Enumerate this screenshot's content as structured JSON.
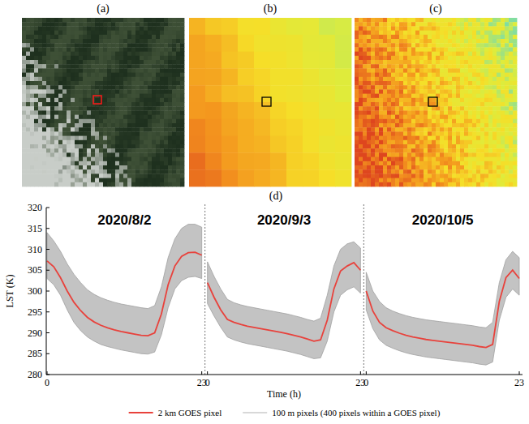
{
  "figure": {
    "panel_labels": [
      "(a)",
      "(b)",
      "(c)",
      "(d)"
    ]
  },
  "chart_data": [
    {
      "type": "line",
      "title": "2020/8/2",
      "y_label": "LST (K)",
      "legend": "bottom",
      "x": [
        0,
        1,
        2,
        3,
        4,
        5,
        6,
        7,
        8,
        9,
        10,
        11,
        12,
        13,
        14,
        15,
        16,
        17,
        18,
        19,
        20,
        21,
        22,
        23
      ],
      "xlim": [
        0,
        23
      ],
      "xticks": [
        0,
        23
      ],
      "ylim": [
        280,
        320
      ],
      "yticks": [
        280,
        285,
        290,
        295,
        300,
        305,
        310,
        315,
        320
      ],
      "series": [
        {
          "name": "2 km GOES pixel",
          "color": "#e8423c",
          "values": [
            307.2,
            305.8,
            303.2,
            300,
            297.3,
            295.3,
            293.7,
            292.6,
            291.8,
            291.2,
            290.7,
            290.3,
            290,
            289.7,
            289.4,
            289.3,
            290,
            294.5,
            301.5,
            306,
            308.3,
            309.2,
            309.3,
            308.6
          ]
        },
        {
          "name": "100 m pixels (400 pixels within a GOES pixel)",
          "color": "#b8b8b8",
          "type": "range",
          "high": [
            314,
            312,
            309.5,
            306.5,
            304,
            302,
            300.3,
            299.2,
            298.4,
            297.8,
            297.3,
            296.9,
            296.6,
            296.3,
            296,
            295.8,
            296.5,
            301,
            308,
            312.5,
            315,
            316,
            316,
            315.3
          ],
          "low": [
            303,
            301.5,
            299,
            295.5,
            292.5,
            290.5,
            289,
            288,
            287.2,
            286.7,
            286.3,
            285.9,
            285.6,
            285.3,
            285,
            284.9,
            285.4,
            289.5,
            296,
            300.5,
            302.5,
            303.3,
            303.5,
            303
          ]
        }
      ]
    },
    {
      "type": "line",
      "title": "2020/9/3",
      "x_label": "Time (h)",
      "tick_labels": "x",
      "x": [
        0,
        1,
        2,
        3,
        4,
        5,
        6,
        7,
        8,
        9,
        10,
        11,
        12,
        13,
        14,
        15,
        16,
        17,
        18,
        19,
        20,
        21,
        22,
        23
      ],
      "xlim": [
        0,
        23
      ],
      "xticks": [
        0,
        23
      ],
      "ylim": [
        280,
        320
      ],
      "series": [
        {
          "color": "#e8423c",
          "values": [
            302,
            298.5,
            295.5,
            293.2,
            292.5,
            292,
            291.6,
            291.3,
            291,
            290.7,
            290.4,
            290.1,
            289.8,
            289.4,
            289,
            288.5,
            288,
            288.3,
            293,
            300.5,
            304.8,
            306,
            306.8,
            305
          ]
        },
        {
          "color": "#b8b8b8",
          "type": "range",
          "high": [
            307,
            303.5,
            300.5,
            298,
            297.2,
            296.7,
            296.3,
            296,
            295.7,
            295.4,
            295.1,
            294.8,
            294.5,
            294.1,
            293.7,
            293.2,
            292.8,
            293.5,
            299,
            306,
            310,
            311.3,
            311.8,
            310.3
          ],
          "low": [
            297,
            294,
            291.3,
            289,
            288.3,
            287.8,
            287.4,
            287.1,
            286.8,
            286.5,
            286.2,
            285.9,
            285.6,
            285.2,
            284.8,
            284.3,
            283.8,
            284,
            288,
            295,
            299,
            300.3,
            301,
            299.5
          ]
        }
      ]
    },
    {
      "type": "line",
      "title": "2020/10/5",
      "tick_labels": "x",
      "x": [
        0,
        1,
        2,
        3,
        4,
        5,
        6,
        7,
        8,
        9,
        10,
        11,
        12,
        13,
        14,
        15,
        16,
        17,
        18,
        19,
        20,
        21,
        22,
        23
      ],
      "xlim": [
        0,
        23
      ],
      "xticks": [
        0,
        23
      ],
      "ylim": [
        280,
        320
      ],
      "series": [
        {
          "color": "#e8423c",
          "values": [
            300,
            295.2,
            292.5,
            291.2,
            290.5,
            289.9,
            289.4,
            289,
            288.7,
            288.4,
            288.2,
            288,
            287.8,
            287.6,
            287.4,
            287.2,
            287,
            286.7,
            286.5,
            287.2,
            297.5,
            303.2,
            305,
            303
          ]
        },
        {
          "color": "#b8b8b8",
          "type": "range",
          "high": [
            304.5,
            300,
            297.5,
            296,
            295.2,
            294.6,
            294.1,
            293.7,
            293.4,
            293.1,
            292.9,
            292.7,
            292.5,
            292.3,
            292.1,
            291.9,
            291.7,
            291.4,
            291.2,
            292.5,
            302,
            307.5,
            309.5,
            308
          ],
          "low": [
            295.5,
            291,
            288.3,
            287,
            286.3,
            285.7,
            285.2,
            284.8,
            284.5,
            284.2,
            284,
            283.8,
            283.6,
            283.4,
            283.2,
            283,
            282.8,
            282.5,
            282.3,
            283,
            293,
            298.5,
            300.5,
            299
          ]
        }
      ]
    }
  ]
}
